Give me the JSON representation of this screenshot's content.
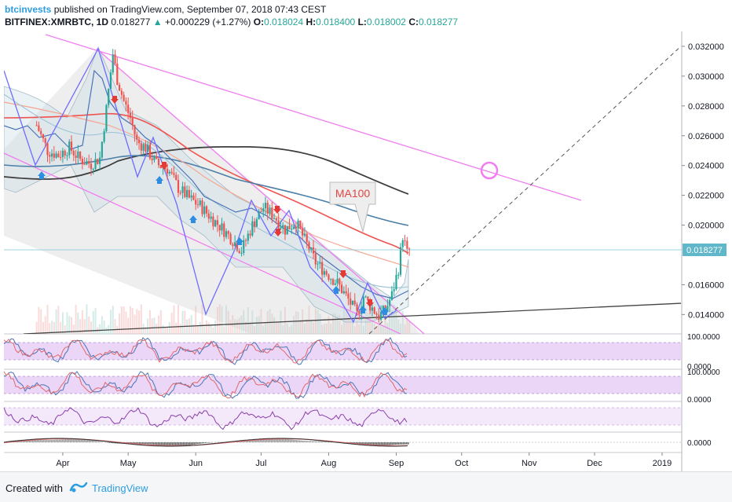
{
  "header": {
    "author": "btcinvests",
    "published_text": "published on TradingView.com, September 07, 2018 07:43 CEST",
    "symbol_line": "BITFINEX:XMRBTC, 1D",
    "last_price": "0.018277",
    "change_arrow": "▲",
    "change_text": "+0.000229 (+1.27%)",
    "o_label": "O:",
    "o_value": "0.018024",
    "h_label": "H:",
    "h_value": "0.018400",
    "l_label": "L:",
    "l_value": "0.018002",
    "c_label": "C:",
    "c_value": "0.018277"
  },
  "footer": {
    "created_with": "Created with",
    "brand": "TradingView"
  },
  "colors": {
    "up": "#26a69a",
    "down": "#ef5350",
    "ma_red": "#ef5350",
    "ma_dark": "#3d3d3d",
    "ma_blue": "#4a7fa7",
    "pink_line": "#f07ef0",
    "channel_fill": "#d8d8d8",
    "oscillator_band": "#e6ccf5",
    "price_tag": "#5fb7c9"
  },
  "chart_data": {
    "type": "candlestick",
    "symbol": "BITFINEX:XMRBTC",
    "interval": "1D",
    "y_axis_ticks": [
      "0.032000",
      "0.030000",
      "0.028000",
      "0.026000",
      "0.024000",
      "0.022000",
      "0.020000",
      "0.018277",
      "0.016000",
      "0.014000"
    ],
    "ylim": [
      0.0127,
      0.033
    ],
    "last_price_label": "0.018277",
    "x_axis_ticks": [
      "Apr",
      "May",
      "Jun",
      "Jul",
      "Aug",
      "Sep",
      "Oct",
      "Nov",
      "Dec",
      "2019"
    ],
    "annotation": "MA100",
    "oscillator_labels": {
      "rsi_top": "100.0000",
      "rsi_bottom": "0.0000",
      "stoch_top": "100.0000",
      "stoch_bottom": "0.0000",
      "macd_zero": "0.0000"
    },
    "close_series": [
      [
        "2018-03-20",
        0.0267
      ],
      [
        "2018-03-25",
        0.025
      ],
      [
        "2018-03-30",
        0.0247
      ],
      [
        "2018-04-04",
        0.0252
      ],
      [
        "2018-04-09",
        0.0244
      ],
      [
        "2018-04-14",
        0.0241
      ],
      [
        "2018-04-18",
        0.0245
      ],
      [
        "2018-04-21",
        0.0278
      ],
      [
        "2018-04-24",
        0.0315
      ],
      [
        "2018-04-26",
        0.0298
      ],
      [
        "2018-04-29",
        0.0283
      ],
      [
        "2018-05-02",
        0.0272
      ],
      [
        "2018-05-05",
        0.0256
      ],
      [
        "2018-05-09",
        0.0252
      ],
      [
        "2018-05-14",
        0.0241
      ],
      [
        "2018-05-19",
        0.0238
      ],
      [
        "2018-05-24",
        0.0225
      ],
      [
        "2018-05-29",
        0.0218
      ],
      [
        "2018-06-03",
        0.0213
      ],
      [
        "2018-06-08",
        0.0205
      ],
      [
        "2018-06-13",
        0.0198
      ],
      [
        "2018-06-18",
        0.019
      ],
      [
        "2018-06-22",
        0.0183
      ],
      [
        "2018-06-27",
        0.02
      ],
      [
        "2018-07-02",
        0.0212
      ],
      [
        "2018-07-07",
        0.0206
      ],
      [
        "2018-07-12",
        0.0197
      ],
      [
        "2018-07-17",
        0.0202
      ],
      [
        "2018-07-21",
        0.019
      ],
      [
        "2018-07-26",
        0.0175
      ],
      [
        "2018-07-31",
        0.0168
      ],
      [
        "2018-08-05",
        0.0161
      ],
      [
        "2018-08-10",
        0.015
      ],
      [
        "2018-08-14",
        0.014
      ],
      [
        "2018-08-17",
        0.0152
      ],
      [
        "2018-08-20",
        0.0146
      ],
      [
        "2018-08-24",
        0.0139
      ],
      [
        "2018-08-27",
        0.0143
      ],
      [
        "2018-08-30",
        0.0153
      ],
      [
        "2018-09-02",
        0.0171
      ],
      [
        "2018-09-04",
        0.0193
      ],
      [
        "2018-09-06",
        0.0181
      ],
      [
        "2018-09-07",
        0.018277
      ]
    ]
  }
}
